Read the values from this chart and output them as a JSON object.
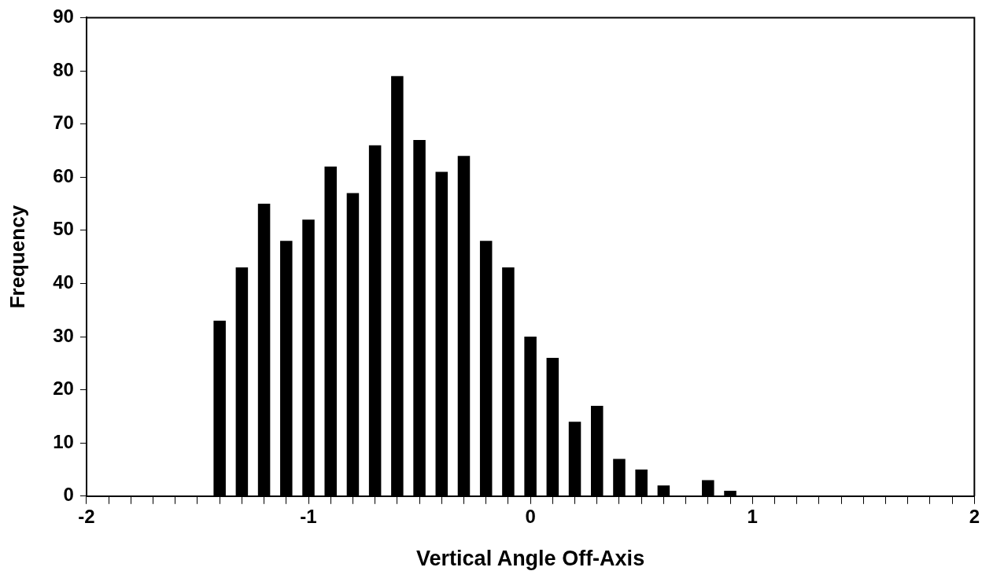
{
  "chart_data": {
    "type": "bar",
    "xlabel": "Vertical Angle Off-Axis",
    "ylabel": "Frequency",
    "x": [
      -1.4,
      -1.3,
      -1.2,
      -1.1,
      -1.0,
      -0.9,
      -0.8,
      -0.7,
      -0.6,
      -0.5,
      -0.4,
      -0.3,
      -0.2,
      -0.1,
      0,
      0.1,
      0.2,
      0.3,
      0.4,
      0.5,
      0.6,
      0.7,
      0.8,
      0.9
    ],
    "values": [
      33,
      43,
      55,
      48,
      52,
      62,
      57,
      66,
      79,
      67,
      61,
      64,
      48,
      43,
      30,
      26,
      14,
      17,
      7,
      5,
      2,
      0,
      3,
      1
    ],
    "color": "#000000",
    "xlim": [
      -2,
      2
    ],
    "xticks": [
      -2,
      {
        "value": -1.9,
        "label": null
      },
      {
        "value": -1.8,
        "label": null
      },
      {
        "value": -1.7,
        "label": null
      },
      {
        "value": -1.6,
        "label": null
      },
      {
        "value": -1.5,
        "label": null
      },
      {
        "value": -1.4,
        "label": null
      },
      {
        "value": -1.3,
        "label": null
      },
      {
        "value": -1.2,
        "label": null
      },
      {
        "value": -1.1,
        "label": null
      },
      -1,
      {
        "value": -0.9,
        "label": null
      },
      {
        "value": -0.8,
        "label": null
      },
      {
        "value": -0.7,
        "label": null
      },
      {
        "value": -0.6,
        "label": null
      },
      {
        "value": -0.5,
        "label": null
      },
      {
        "value": -0.4,
        "label": null
      },
      {
        "value": -0.3,
        "label": null
      },
      {
        "value": -0.2,
        "label": null
      },
      {
        "value": -0.1,
        "label": null
      },
      0,
      {
        "value": 0.1,
        "label": null
      },
      {
        "value": 0.2,
        "label": null
      },
      {
        "value": 0.3,
        "label": null
      },
      {
        "value": 0.4,
        "label": null
      },
      {
        "value": 0.5,
        "label": null
      },
      {
        "value": 0.6,
        "label": null
      },
      {
        "value": 0.7,
        "label": null
      },
      {
        "value": 0.8,
        "label": null
      },
      {
        "value": 0.9,
        "label": null
      },
      1,
      {
        "value": 1.1,
        "label": null
      },
      {
        "value": 1.2,
        "label": null
      },
      {
        "value": 1.3,
        "label": null
      },
      {
        "value": 1.4,
        "label": null
      },
      {
        "value": 1.5,
        "label": null
      },
      {
        "value": 1.6,
        "label": null
      },
      {
        "value": 1.7,
        "label": null
      },
      {
        "value": 1.8,
        "label": null
      },
      {
        "value": 1.9,
        "label": null
      },
      2
    ],
    "ylim": [
      0,
      90
    ],
    "yticks": [
      0,
      10,
      20,
      30,
      40,
      50,
      60,
      70,
      80,
      90
    ],
    "grid": false,
    "legend": false
  }
}
